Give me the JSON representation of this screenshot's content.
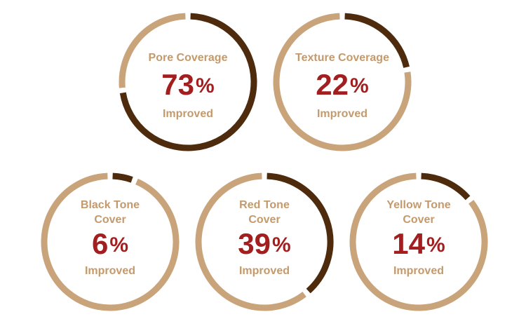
{
  "chart_data": [
    {
      "type": "donut",
      "title": [
        "Pore Coverage"
      ],
      "value": 73,
      "unit": "%",
      "caption": "Improved",
      "ylim": [
        0,
        100
      ],
      "color": "#4f2b0d",
      "track_color": "#c9a379"
    },
    {
      "type": "donut",
      "title": [
        "Texture Coverage"
      ],
      "value": 22,
      "unit": "%",
      "caption": "Improved",
      "ylim": [
        0,
        100
      ],
      "color": "#4f2b0d",
      "track_color": "#c9a379"
    },
    {
      "type": "donut",
      "title": [
        "Black Tone",
        "Cover"
      ],
      "value": 6,
      "unit": "%",
      "caption": "Improved",
      "ylim": [
        0,
        100
      ],
      "color": "#4f2b0d",
      "track_color": "#c9a379"
    },
    {
      "type": "donut",
      "title": [
        "Red Tone",
        "Cover"
      ],
      "value": 39,
      "unit": "%",
      "caption": "Improved",
      "ylim": [
        0,
        100
      ],
      "color": "#4f2b0d",
      "track_color": "#c9a379"
    },
    {
      "type": "donut",
      "title": [
        "Yellow Tone",
        "Cover"
      ],
      "value": 14,
      "unit": "%",
      "caption": "Improved",
      "ylim": [
        0,
        100
      ],
      "color": "#4f2b0d",
      "track_color": "#c9a379"
    }
  ]
}
